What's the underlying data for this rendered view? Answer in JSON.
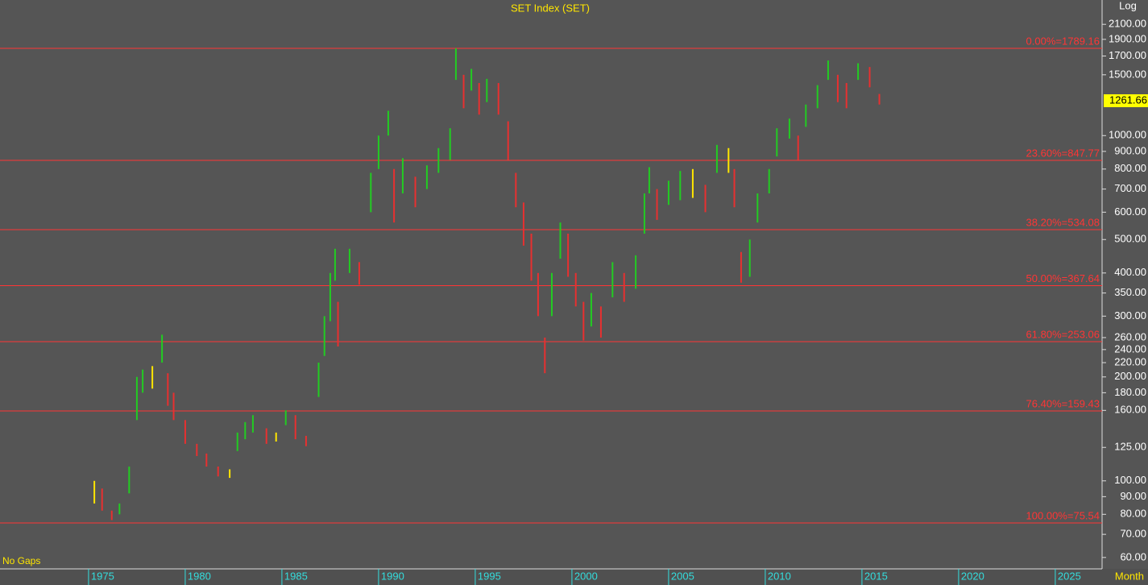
{
  "chart_data": {
    "type": "ohlc",
    "title": "SET Index (SET)",
    "scale_label": "Log",
    "gaps_label": "No Gaps",
    "period_label": "Month",
    "log_scale": true,
    "xlim": [
      1970.42,
      2027.42
    ],
    "ylim": [
      55.6,
      2470
    ],
    "xticks": [
      1975,
      1980,
      1985,
      1990,
      1995,
      2000,
      2005,
      2010,
      2015,
      2020,
      2025
    ],
    "yticks": [
      {
        "value": 60,
        "label": "60.00"
      },
      {
        "value": 70,
        "label": "70.00"
      },
      {
        "value": 80,
        "label": "80.00"
      },
      {
        "value": 90,
        "label": "90.00"
      },
      {
        "value": 100,
        "label": "100.00"
      },
      {
        "value": 125,
        "label": "125.00"
      },
      {
        "value": 160,
        "label": "160.00"
      },
      {
        "value": 180,
        "label": "180.00"
      },
      {
        "value": 200,
        "label": "200.00"
      },
      {
        "value": 220,
        "label": "220.00"
      },
      {
        "value": 240,
        "label": "240.00"
      },
      {
        "value": 260,
        "label": "260.00"
      },
      {
        "value": 300,
        "label": "300.00"
      },
      {
        "value": 350,
        "label": "350.00"
      },
      {
        "value": 400,
        "label": "400.00"
      },
      {
        "value": 500,
        "label": "500.00"
      },
      {
        "value": 600,
        "label": "600.00"
      },
      {
        "value": 700,
        "label": "700.00"
      },
      {
        "value": 800,
        "label": "800.00"
      },
      {
        "value": 900,
        "label": "900.00"
      },
      {
        "value": 1000,
        "label": "1000.00"
      },
      {
        "value": 1500,
        "label": "1500.00"
      },
      {
        "value": 1700,
        "label": "1700.00"
      },
      {
        "value": 1900,
        "label": "1900.00"
      },
      {
        "value": 2100,
        "label": "2100.00"
      }
    ],
    "last_price": {
      "value": 1261.66,
      "label": "1261.66"
    },
    "fib_levels": [
      {
        "value": 1789.16,
        "label": "0.00%=1789.16"
      },
      {
        "value": 847.77,
        "label": "23.60%=847.77"
      },
      {
        "value": 534.08,
        "label": "38.20%=534.08"
      },
      {
        "value": 367.64,
        "label": "50.00%=367.64"
      },
      {
        "value": 253.06,
        "label": "61.80%=253.06"
      },
      {
        "value": 159.43,
        "label": "76.40%=159.43"
      },
      {
        "value": 75.54,
        "label": "100.00%=75.54"
      }
    ],
    "x": [
      1975.3,
      1975.7,
      1976.2,
      1976.6,
      1977.1,
      1977.5,
      1977.8,
      1978.3,
      1978.8,
      1979.1,
      1979.4,
      1980.0,
      1980.6,
      1981.1,
      1981.7,
      1982.3,
      1982.7,
      1983.1,
      1983.5,
      1984.2,
      1984.7,
      1985.2,
      1985.7,
      1986.25,
      1986.9,
      1987.2,
      1987.5,
      1987.75,
      1987.9,
      1988.5,
      1989.0,
      1989.6,
      1990.0,
      1990.5,
      1990.8,
      1991.25,
      1991.9,
      1992.5,
      1993.1,
      1993.7,
      1994.0,
      1994.4,
      1994.8,
      1995.2,
      1995.6,
      1996.2,
      1996.7,
      1997.1,
      1997.5,
      1997.9,
      1998.25,
      1998.6,
      1998.96,
      1999.4,
      1999.8,
      2000.2,
      2000.6,
      2001.0,
      2001.5,
      2002.1,
      2002.7,
      2003.3,
      2003.75,
      2004.0,
      2004.4,
      2005.0,
      2005.6,
      2006.25,
      2006.9,
      2007.5,
      2008.1,
      2008.4,
      2008.75,
      2009.2,
      2009.6,
      2010.2,
      2010.6,
      2011.25,
      2011.7,
      2012.1,
      2012.7,
      2013.25,
      2013.75,
      2014.2,
      2014.8,
      2015.4,
      2015.9
    ],
    "low": [
      86,
      82,
      77,
      80,
      92,
      150,
      180,
      185,
      220,
      165,
      150,
      128,
      118,
      110,
      103,
      102,
      122,
      132,
      138,
      128,
      130,
      145,
      132,
      126,
      175,
      230,
      290,
      380,
      245,
      400,
      370,
      600,
      800,
      1000,
      560,
      680,
      620,
      700,
      780,
      850,
      1450,
      1200,
      1350,
      1150,
      1250,
      1150,
      850,
      620,
      480,
      380,
      300,
      205,
      300,
      440,
      390,
      320,
      255,
      280,
      260,
      340,
      330,
      360,
      520,
      680,
      570,
      630,
      650,
      660,
      600,
      780,
      780,
      620,
      375,
      390,
      560,
      680,
      870,
      980,
      850,
      1060,
      1200,
      1450,
      1250,
      1200,
      1450,
      1380,
      1230
    ],
    "high": [
      100,
      95,
      82,
      86,
      110,
      200,
      210,
      215,
      265,
      205,
      180,
      150,
      128,
      120,
      110,
      108,
      138,
      148,
      155,
      142,
      138,
      160,
      155,
      135,
      220,
      300,
      400,
      470,
      330,
      470,
      430,
      780,
      1000,
      1180,
      800,
      860,
      760,
      820,
      920,
      1050,
      1790,
      1500,
      1560,
      1420,
      1460,
      1420,
      1100,
      780,
      640,
      520,
      400,
      260,
      400,
      560,
      520,
      400,
      330,
      350,
      320,
      430,
      400,
      450,
      680,
      810,
      700,
      740,
      790,
      800,
      720,
      940,
      920,
      800,
      460,
      500,
      680,
      800,
      1050,
      1120,
      1000,
      1230,
      1400,
      1650,
      1500,
      1420,
      1620,
      1580,
      1320
    ],
    "up_color": "#22cc22",
    "down_color": "#e83030",
    "flat_color": "#ffe600",
    "fib_color": "#ff3535",
    "tick_color": "#33dddd"
  }
}
